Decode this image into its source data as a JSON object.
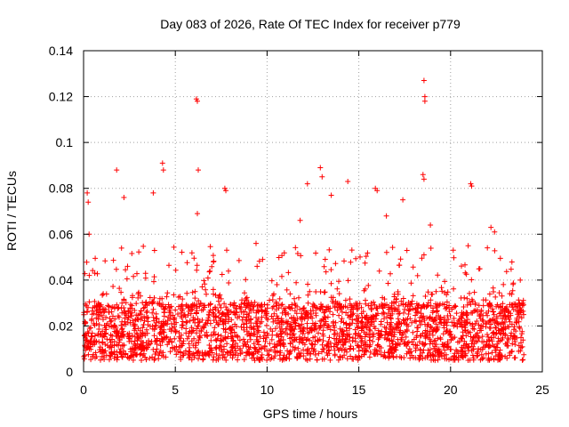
{
  "chart_data": {
    "type": "scatter",
    "title": "Day 083 of 2026, Rate Of TEC Index for receiver p779",
    "xlabel": "GPS time / hours",
    "ylabel": "ROTI / TECUs",
    "xlim": [
      0,
      25
    ],
    "ylim": [
      0,
      0.14
    ],
    "x_ticks": [
      0,
      5,
      10,
      15,
      20,
      25
    ],
    "x_tick_labels": [
      "0",
      "5",
      "10",
      "15",
      "20",
      "25"
    ],
    "y_ticks": [
      0,
      0.02,
      0.04,
      0.06,
      0.08,
      0.1,
      0.12,
      0.14
    ],
    "y_tick_labels": [
      "0",
      "0.02",
      "0.04",
      "0.06",
      "0.08",
      "0.1",
      "0.12",
      "0.14"
    ],
    "grid": true,
    "marker": "+",
    "color": "#ff0000",
    "data_x_range_hours": [
      0,
      24
    ],
    "dense_band": [
      0.005,
      0.03
    ],
    "peak_points": [
      {
        "x": 0.2,
        "y": 0.078
      },
      {
        "x": 0.25,
        "y": 0.074
      },
      {
        "x": 0.3,
        "y": 0.06
      },
      {
        "x": 1.8,
        "y": 0.088
      },
      {
        "x": 2.2,
        "y": 0.076
      },
      {
        "x": 2.4,
        "y": 0.046
      },
      {
        "x": 3.8,
        "y": 0.078
      },
      {
        "x": 4.3,
        "y": 0.091
      },
      {
        "x": 4.35,
        "y": 0.088
      },
      {
        "x": 6.15,
        "y": 0.119
      },
      {
        "x": 6.2,
        "y": 0.118
      },
      {
        "x": 6.25,
        "y": 0.088
      },
      {
        "x": 6.2,
        "y": 0.069
      },
      {
        "x": 7.7,
        "y": 0.08
      },
      {
        "x": 7.75,
        "y": 0.079
      },
      {
        "x": 7.8,
        "y": 0.053
      },
      {
        "x": 9.4,
        "y": 0.056
      },
      {
        "x": 11.8,
        "y": 0.066
      },
      {
        "x": 12.2,
        "y": 0.082
      },
      {
        "x": 12.9,
        "y": 0.089
      },
      {
        "x": 13.0,
        "y": 0.085
      },
      {
        "x": 13.5,
        "y": 0.077
      },
      {
        "x": 14.4,
        "y": 0.083
      },
      {
        "x": 15.9,
        "y": 0.08
      },
      {
        "x": 16.0,
        "y": 0.079
      },
      {
        "x": 16.5,
        "y": 0.068
      },
      {
        "x": 17.4,
        "y": 0.075
      },
      {
        "x": 18.55,
        "y": 0.127
      },
      {
        "x": 18.6,
        "y": 0.12
      },
      {
        "x": 18.6,
        "y": 0.118
      },
      {
        "x": 18.5,
        "y": 0.086
      },
      {
        "x": 18.55,
        "y": 0.084
      },
      {
        "x": 18.9,
        "y": 0.064
      },
      {
        "x": 21.1,
        "y": 0.082
      },
      {
        "x": 21.15,
        "y": 0.081
      },
      {
        "x": 22.2,
        "y": 0.063
      },
      {
        "x": 22.4,
        "y": 0.061
      },
      {
        "x": 23.8,
        "y": 0.04
      }
    ]
  }
}
